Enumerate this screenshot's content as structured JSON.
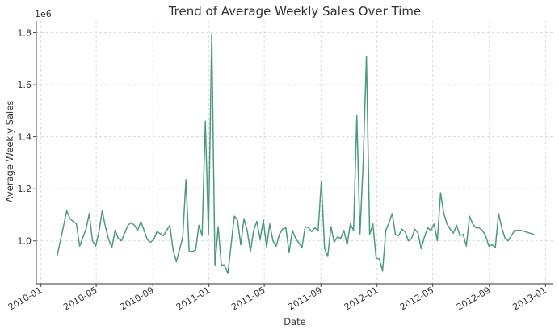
{
  "chart_data": {
    "type": "line",
    "title": "Trend of Average Weekly Sales Over Time",
    "xlabel": "Date",
    "ylabel": "Average Weekly Sales",
    "y_offset_label": "1e6",
    "y_scale_factor": 1000000,
    "x_type": "date",
    "xlim": [
      "2009-12-22",
      "2013-01-18"
    ],
    "ylim": [
      0.835,
      1.845
    ],
    "x_ticks": [
      "2010-01-01",
      "2010-05-01",
      "2010-09-01",
      "2011-01-01",
      "2011-05-01",
      "2011-09-01",
      "2012-01-01",
      "2012-05-01",
      "2012-09-01",
      "2013-01-01"
    ],
    "x_tick_labels": [
      "2010-01",
      "2010-05",
      "2010-09",
      "2011-01",
      "2011-05",
      "2011-09",
      "2012-01",
      "2012-05",
      "2012-09",
      "2013-01"
    ],
    "y_ticks": [
      1.0,
      1.2,
      1.4,
      1.6,
      1.8
    ],
    "y_tick_labels": [
      "1.0",
      "1.2",
      "1.4",
      "1.6",
      "1.8"
    ],
    "grid": true,
    "line_color": "#4c9a7c",
    "series": [
      {
        "x": [
          "2010-02-05",
          "2010-02-26",
          "2010-03-05",
          "2010-03-19",
          "2010-03-26",
          "2010-04-09",
          "2010-04-16",
          "2010-04-23",
          "2010-04-30",
          "2010-05-07",
          "2010-05-14",
          "2010-05-21",
          "2010-05-28",
          "2010-06-04",
          "2010-06-11",
          "2010-06-18",
          "2010-06-25",
          "2010-07-09",
          "2010-07-16",
          "2010-07-23",
          "2010-07-30",
          "2010-08-06",
          "2010-08-13",
          "2010-08-20",
          "2010-08-27",
          "2010-09-03",
          "2010-09-10",
          "2010-09-24",
          "2010-10-08",
          "2010-10-15",
          "2010-10-22",
          "2010-10-29",
          "2010-11-05",
          "2010-11-12",
          "2010-11-19",
          "2010-11-26",
          "2010-12-03",
          "2010-12-10",
          "2010-12-17",
          "2010-12-24",
          "2010-12-31",
          "2011-01-07",
          "2011-01-14",
          "2011-01-21",
          "2011-01-28",
          "2011-02-04",
          "2011-02-11",
          "2011-02-25",
          "2011-03-04",
          "2011-03-11",
          "2011-03-18",
          "2011-03-25",
          "2011-04-01",
          "2011-04-08",
          "2011-04-15",
          "2011-04-22",
          "2011-04-29",
          "2011-05-06",
          "2011-05-13",
          "2011-05-20",
          "2011-05-27",
          "2011-06-03",
          "2011-06-10",
          "2011-06-17",
          "2011-06-24",
          "2011-07-01",
          "2011-07-08",
          "2011-07-22",
          "2011-07-29",
          "2011-08-05",
          "2011-08-12",
          "2011-08-19",
          "2011-08-26",
          "2011-09-02",
          "2011-09-09",
          "2011-09-16",
          "2011-09-23",
          "2011-09-30",
          "2011-10-07",
          "2011-10-14",
          "2011-10-21",
          "2011-10-28",
          "2011-11-04",
          "2011-11-11",
          "2011-11-18",
          "2011-11-25",
          "2011-12-02",
          "2011-12-09",
          "2011-12-16",
          "2011-12-23",
          "2011-12-30",
          "2012-01-06",
          "2012-01-13",
          "2012-01-20",
          "2012-01-27",
          "2012-02-03",
          "2012-02-10",
          "2012-02-17",
          "2012-02-24",
          "2012-03-02",
          "2012-03-09",
          "2012-03-16",
          "2012-03-23",
          "2012-03-30",
          "2012-04-06",
          "2012-04-13",
          "2012-04-20",
          "2012-04-27",
          "2012-05-04",
          "2012-05-11",
          "2012-05-18",
          "2012-05-25",
          "2012-06-01",
          "2012-06-08",
          "2012-06-15",
          "2012-06-22",
          "2012-06-29",
          "2012-07-06",
          "2012-07-13",
          "2012-07-20",
          "2012-07-27",
          "2012-08-03",
          "2012-08-10",
          "2012-08-17",
          "2012-08-24",
          "2012-08-31",
          "2012-09-07",
          "2012-09-14",
          "2012-09-21",
          "2012-09-28",
          "2012-10-05",
          "2012-10-12",
          "2012-10-19",
          "2012-10-26",
          "2012-11-09",
          "2012-12-07"
        ],
        "values": [
          0.94,
          1.115,
          1.085,
          1.065,
          0.98,
          1.045,
          1.105,
          1.0,
          0.98,
          1.035,
          1.115,
          1.055,
          1.005,
          0.975,
          1.04,
          1.01,
          1.0,
          1.06,
          1.07,
          1.06,
          1.04,
          1.075,
          1.04,
          1.005,
          0.995,
          1.005,
          1.035,
          1.02,
          1.06,
          0.965,
          0.92,
          0.965,
          1.015,
          1.235,
          0.96,
          0.96,
          0.965,
          1.06,
          1.02,
          1.46,
          1.025,
          1.795,
          0.905,
          1.055,
          0.905,
          0.905,
          0.875,
          1.095,
          1.08,
          0.985,
          1.085,
          1.04,
          0.96,
          1.04,
          1.075,
          1.005,
          1.08,
          0.975,
          1.065,
          1.0,
          0.98,
          1.025,
          1.045,
          1.05,
          0.955,
          1.04,
          1.01,
          0.975,
          1.055,
          1.05,
          1.035,
          1.05,
          1.04,
          1.23,
          0.97,
          0.94,
          1.055,
          0.995,
          1.015,
          1.01,
          1.04,
          0.985,
          1.065,
          1.04,
          1.48,
          1.025,
          1.305,
          1.71,
          1.025,
          1.065,
          0.935,
          0.93,
          0.885,
          1.04,
          1.07,
          1.105,
          1.025,
          1.02,
          1.045,
          1.035,
          1.0,
          1.01,
          1.045,
          1.03,
          0.97,
          1.015,
          1.05,
          1.04,
          1.065,
          1.0,
          1.185,
          1.105,
          1.065,
          1.045,
          1.03,
          1.06,
          1.02,
          1.025,
          0.98,
          1.095,
          1.065,
          1.05,
          1.05,
          1.04,
          1.02,
          0.98,
          0.985,
          0.975,
          1.105,
          1.05,
          1.01,
          1.0,
          1.02,
          1.04,
          1.04,
          1.025
        ]
      }
    ]
  }
}
